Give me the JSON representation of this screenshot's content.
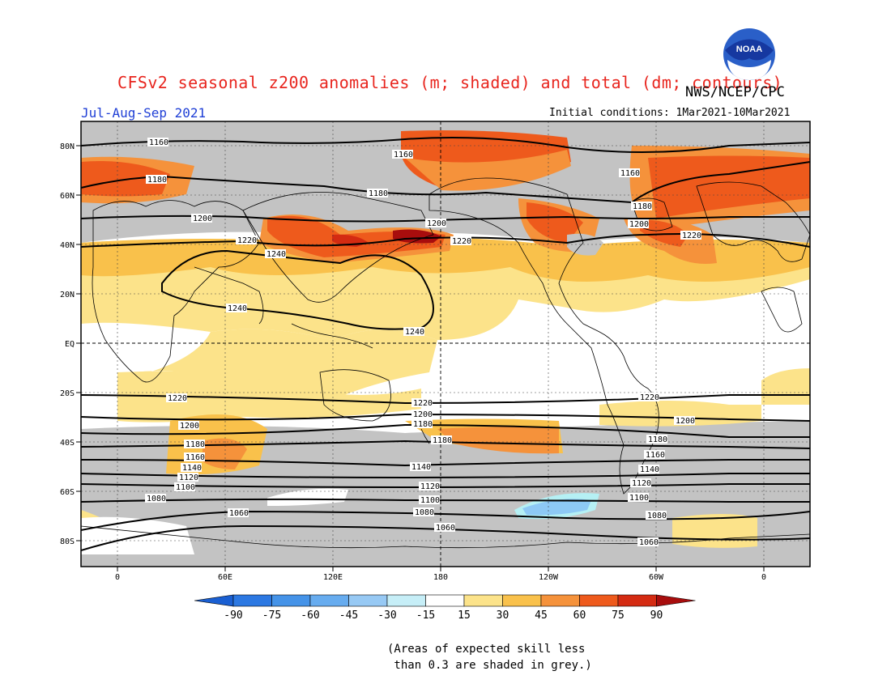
{
  "header": {
    "title": "CFSv2 seasonal z200 anomalies (m; shaded) and total (dm; contours)",
    "org": "NWS/NCEP/CPC",
    "period": "Jul-Aug-Sep 2021",
    "initial_conditions": "Initial conditions: 1Mar2021-10Mar2021",
    "logo_text": "NOAA"
  },
  "map": {
    "lat_labels": [
      "80N",
      "60N",
      "40N",
      "20N",
      "EQ",
      "20S",
      "40S",
      "60S",
      "80S"
    ],
    "lon_labels": [
      "0",
      "60E",
      "120E",
      "180",
      "120W",
      "60W",
      "0"
    ],
    "contour_labels": [
      "1160",
      "1180",
      "1200",
      "1220",
      "1240",
      "1240",
      "1240",
      "1220",
      "1200",
      "1180",
      "1160",
      "1220",
      "1200",
      "1180",
      "1160",
      "1140",
      "1120",
      "1100",
      "1080",
      "1060",
      "1220",
      "1200",
      "1180",
      "1140",
      "1120",
      "1100",
      "1080",
      "1060",
      "1220",
      "1200",
      "1180",
      "1160",
      "1140",
      "1120",
      "1100",
      "1080",
      "1060",
      "1180",
      "1160",
      "1200",
      "1220",
      "1180"
    ],
    "colors": {
      "skill_grey": "#c3c3c3",
      "o15_30": "#fce38a",
      "o30_45": "#f9c14b",
      "o45_60": "#f5923b",
      "o60_75": "#ee5a1c",
      "o75_90": "#d42b12",
      "o90": "#a80d0d",
      "neg_15_30": "#b5f0f4",
      "neg_30_45": "#8dc9f5"
    }
  },
  "colorbar": {
    "tick_labels": [
      "-90",
      "-75",
      "-60",
      "-45",
      "-30",
      "-15",
      "15",
      "30",
      "45",
      "60",
      "75",
      "90"
    ],
    "colors": [
      "#1a5fd2",
      "#2c78e2",
      "#4593e8",
      "#67acef",
      "#97c9f4",
      "#c6eef7",
      "#ffffff",
      "#fce38a",
      "#f9c14b",
      "#f5923b",
      "#ee5a1c",
      "#d42b12",
      "#a80d0d"
    ]
  },
  "caption": "(Areas of expected skill less\n than 0.3 are shaded in grey.)"
}
